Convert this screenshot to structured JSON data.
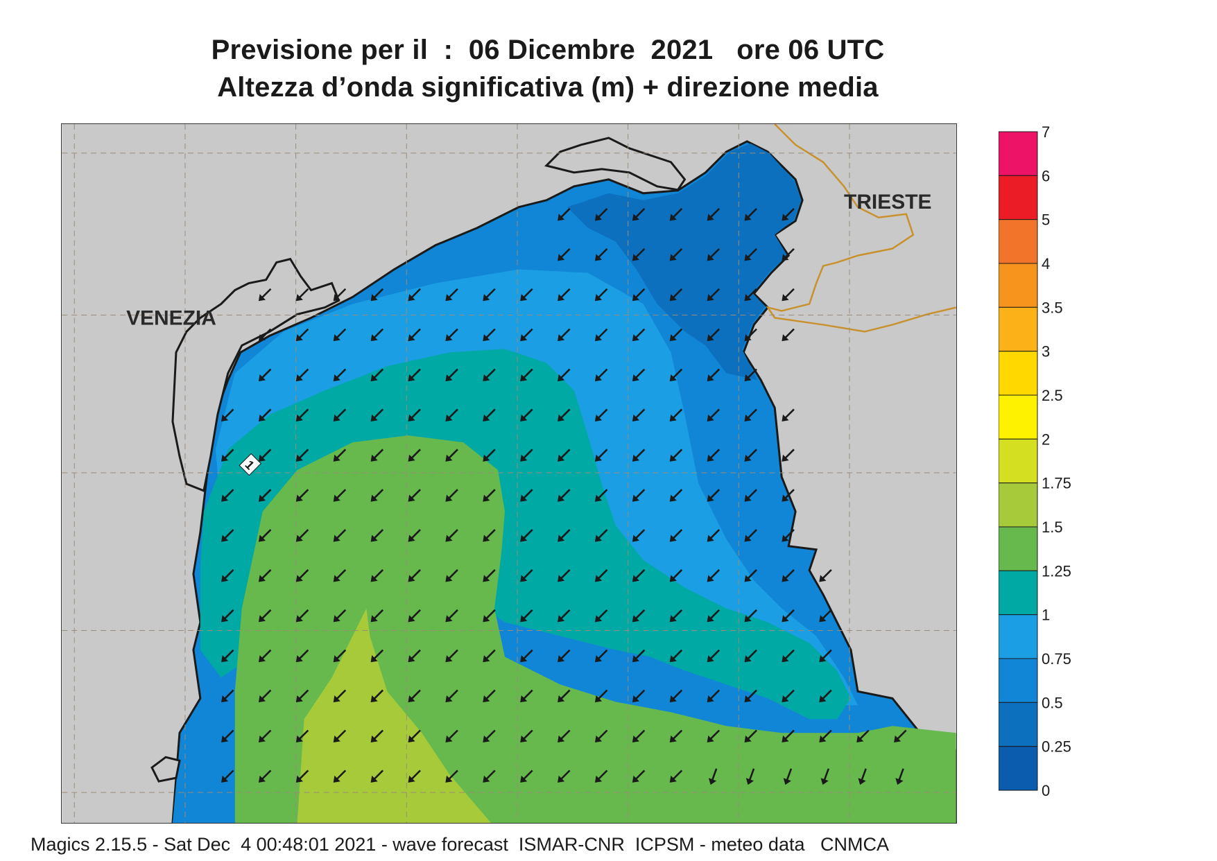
{
  "title_line1": "Previsione per il  :  06 Dicembre  2021   ore 06 UTC",
  "title_line2": "Altezza d’onda significativa (m) + direzione media",
  "map": {
    "cities": [
      "VENEZIA",
      "TRIESTE"
    ],
    "contour_label": "1",
    "colors": {
      "land": "#c9c9c9",
      "coast": "#1a1a1a",
      "border": "#c9912e",
      "grid": "#9a8c78",
      "arrow": "#1a1a1a"
    },
    "wave_zones": [
      {
        "range": "0.25-0.5",
        "color": "#0c70bf"
      },
      {
        "range": "0.5-0.75",
        "color": "#1186d6"
      },
      {
        "range": "0.75-1",
        "color": "#1c9ee4"
      },
      {
        "range": "1-1.25",
        "color": "#00a9a4"
      },
      {
        "range": "1.25-1.5",
        "color": "#67b94e"
      },
      {
        "range": "1.5-1.75",
        "color": "#a6ca3a"
      }
    ],
    "arrow_direction": "south-west"
  },
  "legend": {
    "labels": [
      "7",
      "6",
      "5",
      "4",
      "3.5",
      "3",
      "2.5",
      "2",
      "1.75",
      "1.5",
      "1.25",
      "1",
      "0.75",
      "0.5",
      "0.25",
      "0"
    ],
    "colors": [
      "#ed1366",
      "#ec1c26",
      "#f2742a",
      "#f7941d",
      "#fbb117",
      "#ffd800",
      "#fff200",
      "#d3df20",
      "#a6ca3a",
      "#67b94e",
      "#00a9a4",
      "#1c9ee4",
      "#1186d6",
      "#0c70bf",
      "#0b5cae"
    ]
  },
  "footer": "Magics 2.15.5 - Sat Dec  4 00:48:01 2021 - wave forecast  ISMAR-CNR  ICPSM - meteo data   CNMCA"
}
